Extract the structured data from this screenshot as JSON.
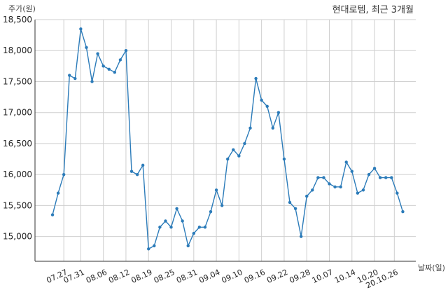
{
  "chart_data": {
    "type": "line",
    "title": "현대로템, 최근 3개월",
    "xlabel": "날짜(일)",
    "ylabel": "주가(원)",
    "ylim": [
      14600,
      18500
    ],
    "yticks": [
      15000,
      15500,
      16000,
      16500,
      17000,
      17500,
      18000,
      18500
    ],
    "ytick_labels": [
      "15,000",
      "15,500",
      "16,000",
      "16,500",
      "17,000",
      "17,500",
      "18,000",
      "18,500"
    ],
    "xtick_labels": [
      "07.27",
      "07.31",
      "08.06",
      "08.12",
      "08.19",
      "08.25",
      "08.31",
      "09.04",
      "09.10",
      "09.16",
      "09.22",
      "09.28",
      "10.07",
      "10.14",
      "10.20",
      "20.10.26"
    ],
    "xtick_positions": [
      2,
      5,
      9,
      13,
      17,
      21,
      25,
      29,
      33,
      37,
      41,
      45,
      49,
      53,
      57,
      60.5
    ],
    "grid": true,
    "series": [
      {
        "color": "#2b7bb9",
        "values": [
          15350,
          15700,
          16000,
          17600,
          17550,
          18350,
          18050,
          17500,
          17950,
          17750,
          17700,
          17650,
          17850,
          18000,
          16050,
          16000,
          16150,
          14800,
          14850,
          15150,
          15250,
          15150,
          15450,
          15250,
          14850,
          15050,
          15150,
          15150,
          15400,
          15750,
          15500,
          16250,
          16400,
          16300,
          16500,
          16750,
          17550,
          17200,
          17100,
          16750,
          17000,
          16250,
          15550,
          15450,
          15000,
          15650,
          15750,
          15950,
          15950,
          15850,
          15800,
          15800,
          16200,
          16050,
          15700,
          15750,
          16000,
          16100,
          15950,
          15950,
          15950,
          15700,
          15400
        ]
      }
    ]
  }
}
